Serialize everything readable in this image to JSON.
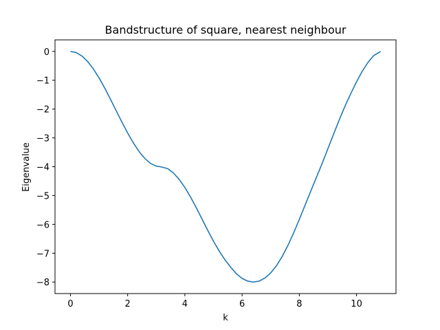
{
  "chart_data": {
    "type": "line",
    "title": "Bandstructure of square, nearest neighbour",
    "xlabel": "k",
    "ylabel": "Eigenvalue",
    "xlim": [
      -0.54,
      11.38
    ],
    "ylim": [
      -8.4,
      0.4
    ],
    "xticks": [
      0,
      2,
      4,
      6,
      8,
      10
    ],
    "yticks": [
      0,
      -1,
      -2,
      -3,
      -4,
      -5,
      -6,
      -7,
      -8
    ],
    "ytick_labels": [
      "0",
      "−1",
      "−2",
      "−3",
      "−4",
      "−5",
      "−6",
      "−7",
      "−8"
    ],
    "grid": false,
    "color": "#1f77b4",
    "series": [
      {
        "x": [
          0,
          0.2,
          0.4,
          0.6,
          0.8,
          1.0,
          1.2,
          1.4,
          1.6,
          1.8,
          2.0,
          2.2,
          2.4,
          2.6,
          2.8,
          3.0,
          3.142,
          3.4,
          3.6,
          3.8,
          4.0,
          4.2,
          4.4,
          4.6,
          4.8,
          5.0,
          5.2,
          5.4,
          5.6,
          5.8,
          6.0,
          6.2,
          6.4,
          6.6,
          6.8,
          7.0,
          7.2,
          7.4,
          7.6,
          7.8,
          8.0,
          8.2,
          8.4,
          8.6,
          8.8,
          9.0,
          9.2,
          9.4,
          9.6,
          9.8,
          10.0,
          10.2,
          10.4,
          10.6,
          10.84
        ],
        "y": [
          0,
          -0.04,
          -0.158,
          -0.349,
          -0.606,
          -0.919,
          -1.276,
          -1.66,
          -2.058,
          -2.453,
          -2.832,
          -3.177,
          -3.475,
          -3.715,
          -3.885,
          -3.98,
          -4.0,
          -4.066,
          -4.218,
          -4.439,
          -4.72,
          -5.055,
          -5.425,
          -5.816,
          -6.208,
          -6.584,
          -6.926,
          -7.226,
          -7.486,
          -7.711,
          -7.876,
          -7.97,
          -8.0,
          -7.967,
          -7.859,
          -7.684,
          -7.436,
          -7.117,
          -6.735,
          -6.3,
          -5.828,
          -5.337,
          -4.848,
          -4.366,
          -3.882,
          -3.374,
          -2.866,
          -2.364,
          -1.894,
          -1.462,
          -1.055,
          -0.689,
          -0.381,
          -0.147,
          0
        ]
      }
    ]
  }
}
